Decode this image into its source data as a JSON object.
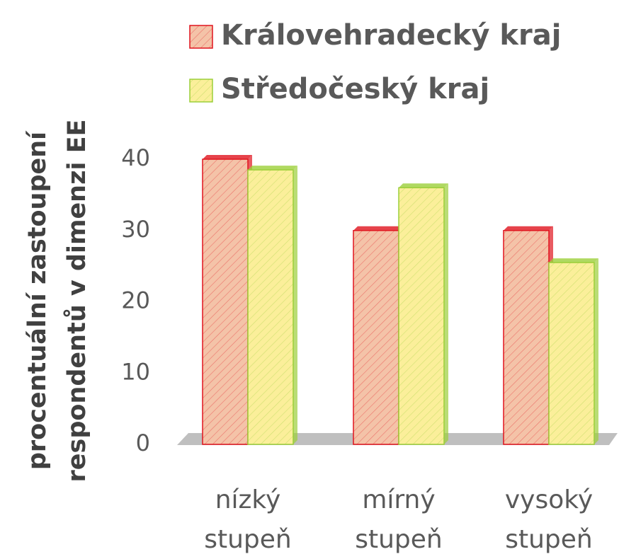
{
  "chart_data": {
    "type": "bar3d",
    "y_label": [
      "procentuální zastoupení",
      "respondentů v dimenzi EE"
    ],
    "categories": [
      "nízký stupeň",
      "mírný stupeň",
      "vysoký stupeň"
    ],
    "series": [
      {
        "name": "Královehradecký kraj",
        "color": "#f4c3a8",
        "edge": "#e0141e",
        "values": [
          40,
          30,
          30
        ]
      },
      {
        "name": "Středočeský kraj",
        "color": "#fbef9a",
        "edge": "#9ccf3a",
        "values": [
          38.5,
          36,
          25.5
        ]
      }
    ],
    "ylim": [
      0,
      40
    ],
    "yticks": [
      0,
      10,
      20,
      30,
      40
    ],
    "legend": "top"
  }
}
